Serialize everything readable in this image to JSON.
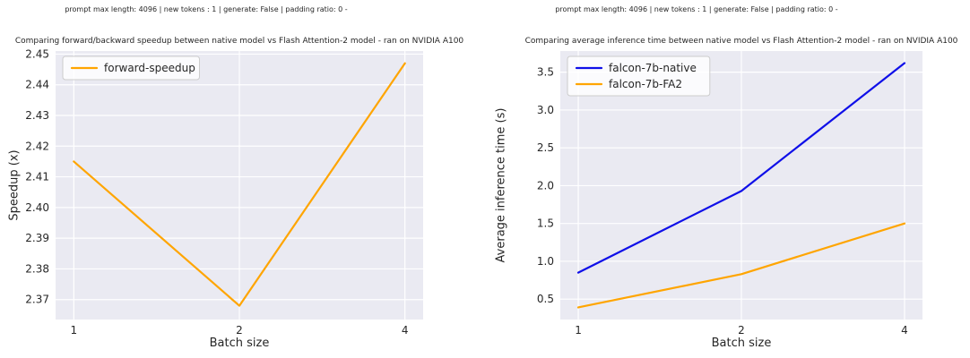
{
  "style": {
    "figure_background": "#ffffff",
    "plot_background": "#eaeaf2",
    "grid_color": "#ffffff",
    "text_color": "#262626",
    "legend_face": "rgba(255,255,255,0.8)",
    "legend_edge": "#cccccc"
  },
  "chart_data": [
    {
      "type": "line",
      "suptitle": "prompt max length: 4096 | new tokens : 1 | generate: False | padding ratio: 0 -",
      "title": "Comparing forward/backward speedup between native model vs Flash Attention-2 model - ran on NVIDIA A100",
      "xlabel": "Batch size",
      "ylabel": "Speedup (x)",
      "x_scale": "log2",
      "x": [
        1,
        2,
        4
      ],
      "xtick_labels": [
        "1",
        "2",
        "4"
      ],
      "xlim_log2": [
        -0.11,
        2.11
      ],
      "ylim": [
        2.3635,
        2.451
      ],
      "yticks": [
        2.37,
        2.38,
        2.39,
        2.4,
        2.41,
        2.42,
        2.43,
        2.44,
        2.45
      ],
      "ytick_labels": [
        "2.37",
        "2.38",
        "2.39",
        "2.40",
        "2.41",
        "2.42",
        "2.43",
        "2.44",
        "2.45"
      ],
      "grid": true,
      "legend_position": "upper-left",
      "series": [
        {
          "name": "forward-speedup",
          "color": "#ffa500",
          "values": [
            2.415,
            2.368,
            2.447
          ]
        }
      ]
    },
    {
      "type": "line",
      "suptitle": "prompt max length: 4096 | new tokens : 1 | generate: False | padding ratio: 0 -",
      "title": "Comparing average inference time between native model vs Flash Attention-2 model - ran on NVIDIA A100",
      "xlabel": "Batch size",
      "ylabel": "Average inference time (s)",
      "x_scale": "log2",
      "x": [
        1,
        2,
        4
      ],
      "xtick_labels": [
        "1",
        "2",
        "4"
      ],
      "xlim_log2": [
        -0.11,
        2.11
      ],
      "ylim": [
        0.23,
        3.78
      ],
      "yticks": [
        0.5,
        1.0,
        1.5,
        2.0,
        2.5,
        3.0,
        3.5
      ],
      "ytick_labels": [
        "0.5",
        "1.0",
        "1.5",
        "2.0",
        "2.5",
        "3.0",
        "3.5"
      ],
      "grid": true,
      "legend_position": "upper-left",
      "series": [
        {
          "name": "falcon-7b-native",
          "color": "#0f0fe8",
          "values": [
            0.85,
            1.93,
            3.62
          ]
        },
        {
          "name": "falcon-7b-FA2",
          "color": "#ffa500",
          "values": [
            0.39,
            0.83,
            1.5
          ]
        }
      ]
    }
  ]
}
